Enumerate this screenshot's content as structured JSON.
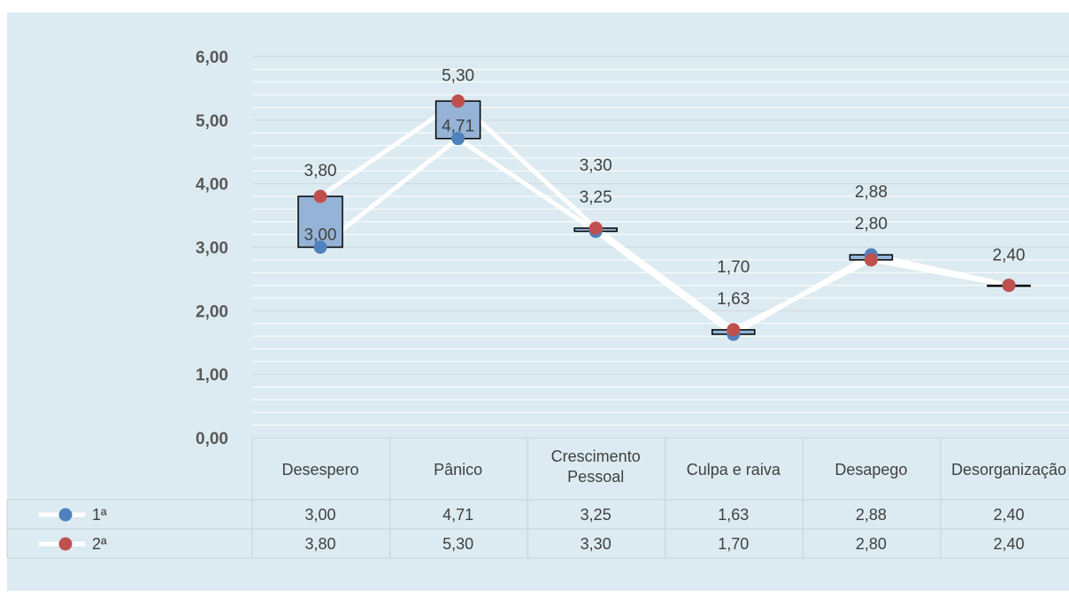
{
  "chart_data": {
    "type": "line",
    "categories": [
      "Desespero",
      "Pânico",
      "Crescimento Pessoal",
      "Culpa e raiva",
      "Desapego",
      "Desorganização"
    ],
    "series": [
      {
        "name": "1ª",
        "values": [
          3.0,
          4.71,
          3.25,
          1.63,
          2.88,
          2.4
        ],
        "color": "#4f81bd"
      },
      {
        "name": "2ª",
        "values": [
          3.8,
          5.3,
          3.3,
          1.7,
          2.8,
          2.4
        ],
        "color": "#c0504d"
      }
    ],
    "y_ticks": [
      "0,00",
      "1,00",
      "2,00",
      "3,00",
      "4,00",
      "5,00",
      "6,00"
    ],
    "ylim": [
      0,
      6
    ],
    "title": "",
    "xlabel": "",
    "ylabel": "",
    "data_table": true,
    "up_down_bars": true,
    "line_color": "#ffffff",
    "box_color": "#95b3d7",
    "background": "#dcebf1",
    "grid": true
  }
}
